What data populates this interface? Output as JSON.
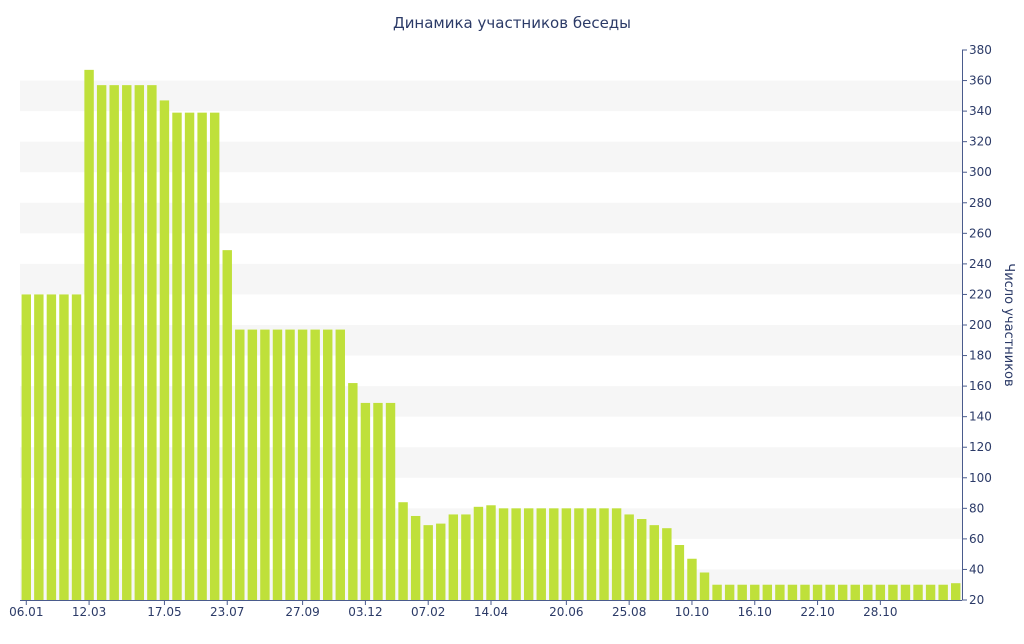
{
  "chart_data": {
    "type": "bar",
    "title": "Динамика участников беседы",
    "xlabel": "",
    "ylabel": "Число участников",
    "y_axis_position": "right",
    "ylim": [
      20,
      380
    ],
    "yticks": [
      20,
      40,
      60,
      80,
      100,
      120,
      140,
      160,
      180,
      200,
      220,
      240,
      260,
      280,
      300,
      320,
      340,
      360,
      380
    ],
    "x_tick_labels": [
      "06.01",
      "12.03",
      "17.05",
      "23.07",
      "27.09",
      "03.12",
      "07.02",
      "14.04",
      "20.06",
      "25.08",
      "10.10",
      "16.10",
      "22.10",
      "28.10"
    ],
    "x_tick_bar_index": [
      0,
      5,
      11,
      16,
      22,
      27,
      32,
      37,
      43,
      48,
      53,
      58,
      63,
      68
    ],
    "grid": "alternating horizontal bands",
    "legend": "none",
    "series": [
      {
        "values": [
          220,
          220,
          220,
          220,
          220,
          367,
          357,
          357,
          357,
          357,
          357,
          347,
          339,
          339,
          339,
          339,
          249,
          197,
          197,
          197,
          197,
          197,
          197,
          197,
          197,
          197,
          162,
          149,
          149,
          149,
          84,
          75,
          69,
          70,
          76,
          76,
          81,
          82,
          80,
          80,
          80,
          80,
          80,
          80,
          80,
          80,
          80,
          80,
          76,
          73,
          69,
          67,
          56,
          47,
          38,
          30,
          30,
          30,
          30,
          30,
          30,
          30,
          30,
          30,
          30,
          30,
          30,
          30,
          30,
          30,
          30,
          30,
          30,
          30,
          31
        ]
      }
    ]
  },
  "colors": {
    "bar": "#bfe03a",
    "band": "#f6f6f6",
    "axis": "#4a5b8c",
    "text": "#2b3a67"
  }
}
